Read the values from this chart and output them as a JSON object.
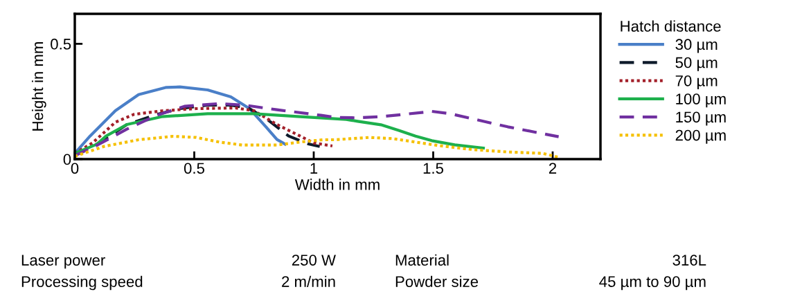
{
  "chart_data": {
    "type": "line",
    "xlabel": "Width in mm",
    "ylabel": "Height in mm",
    "legend_title": "Hatch distance",
    "legend": "right",
    "xlim": [
      0,
      2.2
    ],
    "ylim": [
      0,
      0.63
    ],
    "xticks": [
      0,
      0.5,
      1,
      1.5,
      2
    ],
    "yticks": [
      0,
      0.5
    ],
    "grid": false,
    "series": [
      {
        "name": "30 µm",
        "color": "#4a7fc8",
        "line_style": "solid",
        "x": [
          0,
          0.064,
          0.17,
          0.267,
          0.383,
          0.44,
          0.556,
          0.653,
          0.73,
          0.8,
          0.846,
          0.88
        ],
        "values": [
          0.025,
          0.1,
          0.21,
          0.28,
          0.311,
          0.313,
          0.3,
          0.27,
          0.22,
          0.14,
          0.085,
          0.065
        ]
      },
      {
        "name": "50 µm",
        "color": "#0d1a2a",
        "line_style": "dashed",
        "x": [
          0,
          0.102,
          0.218,
          0.344,
          0.44,
          0.556,
          0.653,
          0.73,
          0.808,
          0.895,
          0.98,
          1.025
        ],
        "values": [
          0.02,
          0.07,
          0.15,
          0.194,
          0.219,
          0.234,
          0.234,
          0.22,
          0.17,
          0.1,
          0.065,
          0.055
        ]
      },
      {
        "name": "70 µm",
        "color": "#a3202a",
        "line_style": "dotted",
        "x": [
          0,
          0.074,
          0.17,
          0.247,
          0.363,
          0.508,
          0.672,
          0.75,
          0.846,
          0.943,
          1.0,
          1.078
        ],
        "values": [
          0.025,
          0.07,
          0.16,
          0.194,
          0.209,
          0.219,
          0.222,
          0.21,
          0.15,
          0.1,
          0.07,
          0.057
        ]
      },
      {
        "name": "100 µm",
        "color": "#1db04c",
        "line_style": "solid",
        "x": [
          0,
          0.093,
          0.131,
          0.218,
          0.363,
          0.556,
          0.75,
          0.943,
          1.136,
          1.184,
          1.281,
          1.358,
          1.426,
          1.494,
          1.59,
          1.71
        ],
        "values": [
          0.025,
          0.065,
          0.1,
          0.15,
          0.184,
          0.197,
          0.197,
          0.184,
          0.172,
          0.164,
          0.149,
          0.124,
          0.1,
          0.08,
          0.062,
          0.048
        ]
      },
      {
        "name": "150 µm",
        "color": "#7030a0",
        "line_style": "dashed",
        "x": [
          0,
          0.093,
          0.218,
          0.344,
          0.459,
          0.605,
          0.711,
          0.846,
          1.03,
          1.088,
          1.184,
          1.281,
          1.378,
          1.494,
          1.571,
          1.668,
          1.812,
          2.025
        ],
        "values": [
          0.015,
          0.06,
          0.13,
          0.19,
          0.229,
          0.241,
          0.234,
          0.214,
          0.19,
          0.181,
          0.179,
          0.184,
          0.194,
          0.207,
          0.197,
          0.174,
          0.14,
          0.097
        ]
      },
      {
        "name": "200 µm",
        "color": "#f5c000",
        "line_style": "dotted",
        "x": [
          0,
          0.122,
          0.267,
          0.412,
          0.508,
          0.605,
          0.7,
          0.846,
          0.943,
          1.04,
          1.088,
          1.233,
          1.33,
          1.426,
          1.52,
          1.668,
          1.812,
          1.957,
          2.025
        ],
        "values": [
          0.012,
          0.055,
          0.084,
          0.099,
          0.094,
          0.074,
          0.061,
          0.061,
          0.074,
          0.084,
          0.084,
          0.094,
          0.089,
          0.074,
          0.059,
          0.041,
          0.031,
          0.025,
          0.008
        ]
      }
    ],
    "annotations": [
      "Laser power",
      "250 W",
      "Material",
      "316L",
      "Processing speed",
      "2 m/min",
      "Powder size",
      "45 µm to 90 µm"
    ]
  }
}
